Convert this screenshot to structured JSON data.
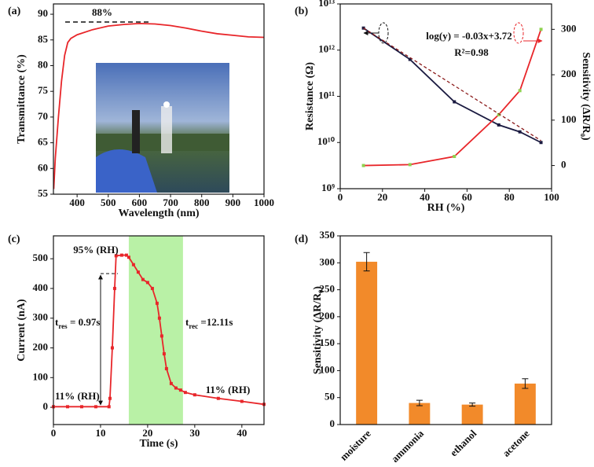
{
  "chart_data": [
    {
      "type": "line",
      "label": "(a)",
      "x_label": "Wavelength (nm)",
      "y_label": "Transmittance (%)",
      "xlim": [
        324,
        1000
      ],
      "xticks": [
        400,
        500,
        600,
        700,
        800,
        900,
        1000
      ],
      "ylim": [
        55,
        92
      ],
      "yticks": [
        55,
        60,
        65,
        70,
        75,
        80,
        85,
        90
      ],
      "series": [
        {
          "color": "#e8262a",
          "markers": false,
          "x": [
            325,
            330,
            340,
            350,
            360,
            370,
            380,
            400,
            450,
            500,
            550,
            600,
            650,
            700,
            750,
            800,
            850,
            900,
            950,
            1000
          ],
          "values": [
            56,
            62,
            70,
            77,
            82,
            84.5,
            85.3,
            86,
            87,
            87.7,
            88,
            88.2,
            88.1,
            87.8,
            87.3,
            86.7,
            86.2,
            85.9,
            85.6,
            85.5
          ]
        }
      ],
      "annotations": [
        {
          "text": "88%"
        }
      ]
    },
    {
      "type": "line",
      "label": "(b)",
      "x_label": "RH (%)",
      "y_label": "Resistance (Ω)",
      "y2_label": "Sensitivity (ΔR/R₀)",
      "xlim": [
        0,
        100
      ],
      "xticks": [
        0,
        20,
        40,
        60,
        80,
        100
      ],
      "log_y": true,
      "ylim": [
        1000000000,
        10000000000000
      ],
      "yticks": [
        {
          "value": 1000000000,
          "label": "10⁹"
        },
        {
          "value": 10000000000,
          "label": "10¹⁰"
        },
        {
          "value": 100000000000,
          "label": "10¹¹"
        },
        {
          "value": 1000000000000,
          "label": "10¹²"
        },
        {
          "value": 10000000000000,
          "label": "10¹³"
        }
      ],
      "y2lim": [
        -51,
        356
      ],
      "y2ticks": [
        0,
        100,
        200,
        300
      ],
      "series": [
        {
          "color": "#1a1a40",
          "markers": true,
          "x": [
            11,
            33,
            54,
            75,
            85,
            95
          ],
          "values": [
            3000000000000,
            630000000000,
            76000000000,
            24000000000,
            17000000000,
            10000000000
          ]
        },
        {
          "color": "#e8262a",
          "markers": true,
          "axis": "y2",
          "x": [
            11,
            33,
            54,
            75,
            85,
            95
          ],
          "values": [
            0,
            2,
            20,
            112,
            165,
            300
          ]
        },
        {
          "color": "#8b1a1a",
          "markers": false,
          "dash": true,
          "x": [
            11,
            95
          ],
          "values": [
            3000000000000,
            11000000000
          ]
        }
      ],
      "annotations": [
        {
          "text": "log(y) = -0.03x+3.72"
        },
        {
          "text": "R²=0.98"
        }
      ]
    },
    {
      "type": "line",
      "label": "(c)",
      "x_label": "Time (s)",
      "y_label": "Current (nA)",
      "xlim": [
        0,
        44.7
      ],
      "xticks": [
        0,
        10,
        20,
        30,
        40
      ],
      "ylim": [
        -58,
        577
      ],
      "yticks": [
        0,
        100,
        200,
        300,
        400,
        500
      ],
      "highlight_x": [
        16,
        27.5
      ],
      "series": [
        {
          "color": "#e8262a",
          "markers": true,
          "x": [
            0,
            3,
            6,
            9,
            11.8,
            12,
            12.5,
            13,
            13.3,
            14.5,
            15.5,
            16,
            17,
            18,
            19,
            20,
            21,
            22,
            22.5,
            23,
            23.5,
            24,
            25,
            26,
            27,
            28,
            30,
            35,
            40,
            44.7
          ],
          "values": [
            2,
            2,
            2,
            2,
            2,
            30,
            200,
            400,
            510,
            512,
            512,
            505,
            480,
            455,
            430,
            420,
            400,
            350,
            300,
            240,
            180,
            130,
            80,
            65,
            58,
            50,
            42,
            30,
            20,
            10
          ]
        }
      ],
      "annotations": [
        {
          "text": "95% (RH)"
        },
        {
          "text": "11% (RH)"
        },
        {
          "text": "11% (RH)"
        },
        {
          "parts": [
            {
              "text": "t"
            },
            {
              "text": "res",
              "sub": true
            },
            {
              "text": " = 0.97s"
            }
          ]
        },
        {
          "parts": [
            {
              "text": "t"
            },
            {
              "text": "rec",
              "sub": true
            },
            {
              "text": " =12.11s"
            }
          ]
        }
      ]
    },
    {
      "type": "bar",
      "label": "(d)",
      "y_label": "Sensitivity (ΔR/R₀)",
      "color": "#f28a2a",
      "categories": [
        "moisture",
        "ammonia",
        "ethanol",
        "acetone"
      ],
      "values": [
        302,
        40,
        37,
        76
      ],
      "errors": [
        17,
        5,
        3,
        9
      ],
      "ylim": [
        0,
        350
      ],
      "yticks": [
        0,
        50,
        100,
        150,
        200,
        250,
        300,
        350
      ]
    }
  ]
}
